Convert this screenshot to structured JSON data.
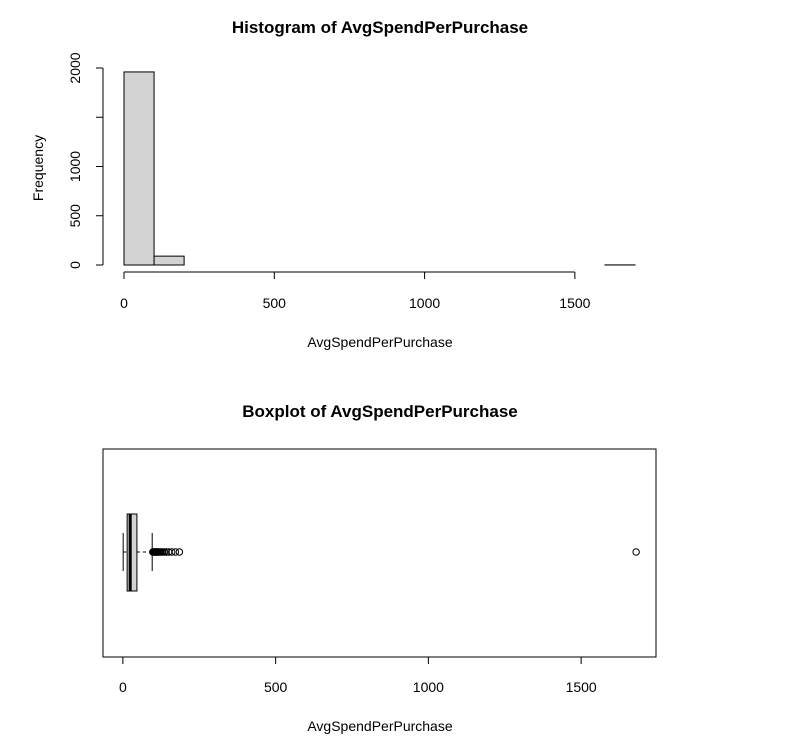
{
  "chart_data": [
    {
      "type": "bar",
      "subtype": "histogram",
      "title": "Histogram of AvgSpendPerPurchase",
      "xlabel": "AvgSpendPerPurchase",
      "ylabel": "Frequency",
      "bin_edges": [
        0,
        100,
        200,
        300,
        400,
        500,
        600,
        700,
        800,
        900,
        1000,
        1100,
        1200,
        1300,
        1400,
        1500,
        1600,
        1700
      ],
      "values": [
        1960,
        90,
        0,
        0,
        0,
        0,
        0,
        0,
        0,
        0,
        0,
        0,
        0,
        0,
        0,
        0,
        1
      ],
      "xlim": [
        0,
        1700
      ],
      "ylim": [
        0,
        2000
      ],
      "x_ticks": [
        0,
        500,
        1000,
        1500
      ],
      "x_tick_labels": [
        "0",
        "500",
        "1000",
        "1500"
      ],
      "y_ticks": [
        0,
        500,
        1000,
        1500,
        2000
      ],
      "y_tick_labels": [
        "0",
        "500",
        "1000",
        "",
        "2000"
      ],
      "bar_fill": "#d3d3d3",
      "bar_stroke": "#000000",
      "grid": false
    },
    {
      "type": "boxplot",
      "orientation": "horizontal",
      "title": "Boxplot of AvgSpendPerPurchase",
      "xlabel": "AvgSpendPerPurchase",
      "stats": {
        "min": 1,
        "q1": 14,
        "median": 24,
        "q3": 46,
        "whisker_high": 96
      },
      "outliers": [
        98,
        100,
        102,
        104,
        106,
        108,
        110,
        112,
        114,
        117,
        120,
        123,
        127,
        131,
        136,
        142,
        150,
        160,
        172,
        185,
        1680
      ],
      "xlim": [
        -65,
        1745
      ],
      "x_ticks": [
        0,
        500,
        1000,
        1500
      ],
      "x_tick_labels": [
        "0",
        "500",
        "1000",
        "1500"
      ],
      "box_fill": "#d3d3d3",
      "grid": false
    }
  ]
}
